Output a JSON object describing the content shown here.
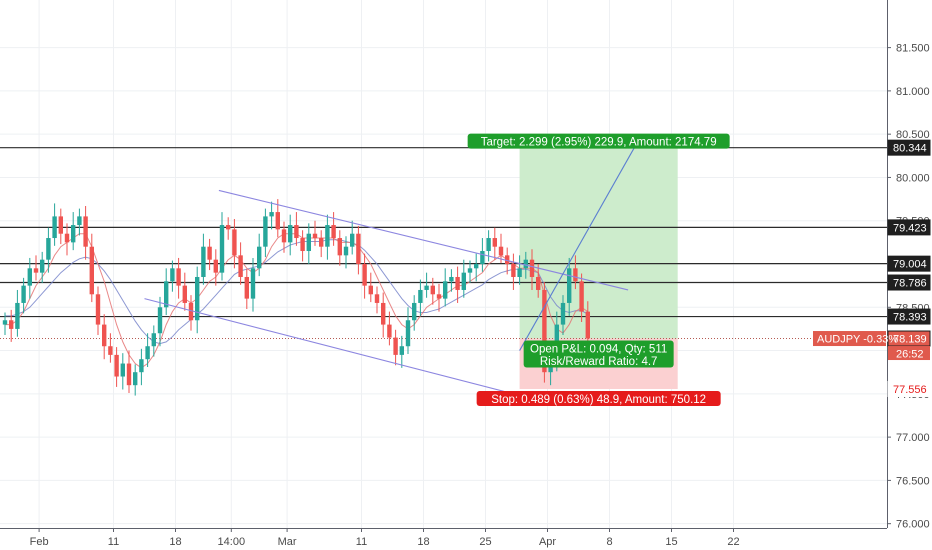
{
  "chart_data": {
    "type": "candlestick",
    "symbol_label": "AUDJPY -0.33%",
    "last_price": "78.139",
    "countdown": "26:52",
    "ylim": [
      75.95,
      82.05
    ],
    "xlim": [
      0,
      127
    ],
    "y_ticks": [
      {
        "value": 76.0,
        "label": "76.000"
      },
      {
        "value": 76.5,
        "label": "76.500"
      },
      {
        "value": 77.0,
        "label": "77.000"
      },
      {
        "value": 77.5,
        "label": "77.500"
      },
      {
        "value": 78.0,
        "label": "78.000"
      },
      {
        "value": 78.5,
        "label": "78.500"
      },
      {
        "value": 79.0,
        "label": "79.000"
      },
      {
        "value": 79.5,
        "label": "79.500"
      },
      {
        "value": 80.0,
        "label": "80.000"
      },
      {
        "value": 80.5,
        "label": "80.500"
      },
      {
        "value": 81.0,
        "label": "81.000"
      },
      {
        "value": 81.5,
        "label": "81.500"
      }
    ],
    "x_ticks": [
      {
        "x": 5.5,
        "label": "Feb"
      },
      {
        "x": 17.5,
        "label": "11"
      },
      {
        "x": 27.5,
        "label": "18"
      },
      {
        "x": 36.5,
        "label": "14:00"
      },
      {
        "x": 45.5,
        "label": "Mar"
      },
      {
        "x": 57.5,
        "label": "11"
      },
      {
        "x": 67.5,
        "label": "18"
      },
      {
        "x": 77.5,
        "label": "25"
      },
      {
        "x": 87.5,
        "label": "Apr"
      },
      {
        "x": 97.5,
        "label": "8"
      },
      {
        "x": 107.5,
        "label": "15"
      },
      {
        "x": 117.5,
        "label": "22"
      }
    ],
    "horizontal_levels": [
      {
        "value": 80.344,
        "label": "80.344",
        "style": "dark"
      },
      {
        "value": 79.423,
        "label": "79.423",
        "style": "dark"
      },
      {
        "value": 79.004,
        "label": "79.004",
        "style": "dark"
      },
      {
        "value": 78.786,
        "label": "78.786",
        "style": "dark"
      },
      {
        "value": 78.393,
        "label": "78.393",
        "style": "dark"
      },
      {
        "value": 78.139,
        "label": "78.139",
        "style": "price"
      },
      {
        "value": 77.556,
        "label": "77.556",
        "style": "stop"
      }
    ],
    "closes": [
      78.35,
      78.25,
      78.55,
      78.75,
      78.95,
      78.9,
      79.05,
      79.3,
      79.55,
      79.35,
      79.25,
      79.45,
      79.55,
      79.2,
      78.65,
      78.3,
      78.05,
      77.95,
      77.7,
      77.85,
      77.6,
      77.75,
      77.9,
      78.05,
      78.2,
      78.5,
      78.8,
      78.95,
      78.75,
      78.55,
      78.35,
      78.85,
      79.2,
      79.05,
      78.9,
      79.45,
      79.4,
      79.1,
      78.85,
      78.6,
      78.95,
      79.2,
      79.55,
      79.6,
      79.4,
      79.25,
      79.45,
      79.3,
      79.15,
      79.35,
      79.3,
      79.2,
      79.45,
      79.3,
      79.1,
      79.2,
      79.35,
      79.0,
      78.75,
      78.65,
      78.55,
      78.3,
      78.15,
      77.95,
      78.05,
      78.35,
      78.55,
      78.7,
      78.75,
      78.65,
      78.6,
      78.8,
      78.85,
      78.7,
      78.9,
      78.95,
      79.0,
      79.15,
      79.3,
      79.2,
      79.1,
      79.0,
      78.85,
      78.95,
      79.05,
      78.85,
      78.7,
      77.75,
      77.85,
      78.3,
      78.55,
      78.95,
      78.8,
      78.45,
      78.14
    ],
    "ma_fast": [
      78.3,
      78.3,
      78.35,
      78.45,
      78.6,
      78.75,
      78.85,
      78.95,
      79.1,
      79.2,
      79.25,
      79.3,
      79.35,
      79.35,
      79.2,
      79.0,
      78.8,
      78.55,
      78.3,
      78.1,
      77.95,
      77.85,
      77.8,
      77.85,
      77.95,
      78.1,
      78.3,
      78.45,
      78.55,
      78.6,
      78.55,
      78.6,
      78.7,
      78.8,
      78.85,
      78.95,
      79.05,
      79.1,
      79.05,
      78.95,
      78.9,
      78.95,
      79.05,
      79.2,
      79.3,
      79.35,
      79.35,
      79.35,
      79.3,
      79.3,
      79.3,
      79.3,
      79.3,
      79.3,
      79.25,
      79.25,
      79.25,
      79.2,
      79.1,
      79.0,
      78.85,
      78.7,
      78.55,
      78.4,
      78.3,
      78.25,
      78.3,
      78.4,
      78.5,
      78.55,
      78.6,
      78.65,
      78.7,
      78.75,
      78.75,
      78.8,
      78.85,
      78.9,
      79.0,
      79.05,
      79.1,
      79.05,
      79.0,
      78.95,
      78.95,
      78.95,
      78.9,
      78.65,
      78.4,
      78.25,
      78.2,
      78.3,
      78.45,
      78.5,
      78.45
    ],
    "ma_slow": [
      78.4,
      78.4,
      78.42,
      78.45,
      78.5,
      78.58,
      78.66,
      78.74,
      78.82,
      78.9,
      78.96,
      79.02,
      79.06,
      79.08,
      79.06,
      79.0,
      78.92,
      78.82,
      78.7,
      78.58,
      78.46,
      78.34,
      78.24,
      78.16,
      78.1,
      78.08,
      78.1,
      78.16,
      78.24,
      78.3,
      78.36,
      78.42,
      78.48,
      78.56,
      78.64,
      78.72,
      78.8,
      78.88,
      78.92,
      78.94,
      78.96,
      78.98,
      79.02,
      79.08,
      79.14,
      79.18,
      79.22,
      79.24,
      79.26,
      79.26,
      79.26,
      79.26,
      79.28,
      79.28,
      79.28,
      79.26,
      79.24,
      79.22,
      79.16,
      79.08,
      79.0,
      78.9,
      78.8,
      78.7,
      78.6,
      78.52,
      78.46,
      78.44,
      78.44,
      78.46,
      78.48,
      78.52,
      78.56,
      78.6,
      78.64,
      78.68,
      78.72,
      78.76,
      78.82,
      78.86,
      78.9,
      78.92,
      78.94,
      78.94,
      78.94,
      78.92,
      78.9,
      78.76,
      78.62,
      78.52,
      78.46,
      78.44,
      78.46,
      78.46,
      78.42
    ],
    "channel_upper": [
      [
        34.5,
        79.85
      ],
      [
        100.5,
        78.7
      ]
    ],
    "channel_lower": [
      [
        22.5,
        78.6
      ],
      [
        82.0,
        77.5
      ]
    ],
    "projection_line": [
      [
        83.0,
        78.0
      ],
      [
        101.5,
        80.344
      ]
    ],
    "position": {
      "x_start": 83.0,
      "x_end": 108.5,
      "entry": 78.139,
      "target": 80.344,
      "stop": 77.556,
      "target_label": "Target: 2.299 (2.95%) 229.9, Amount: 2174.79",
      "stop_label": "Stop: 0.489 (0.63%) 48.9, Amount: 750.12",
      "pnl_label_line1": "Open P&L: 0.094, Qty: 511",
      "pnl_label_line2": "Risk/Reward Ratio: 4.7"
    },
    "colors": {
      "up": "#26a69a",
      "down": "#ef5350",
      "ma_fast": "#e57373",
      "ma_slow": "#7986cb",
      "channel": "#8c86e0",
      "target_zone": "#cdeccc",
      "stop_zone": "#fbd0d1",
      "target_tag": "#1e9e2b",
      "stop_tag": "#e51b1b",
      "level_line": "#2b2b2b",
      "price_tag": "#e05a4d",
      "grid": "#eef0f3"
    },
    "grid": true
  }
}
